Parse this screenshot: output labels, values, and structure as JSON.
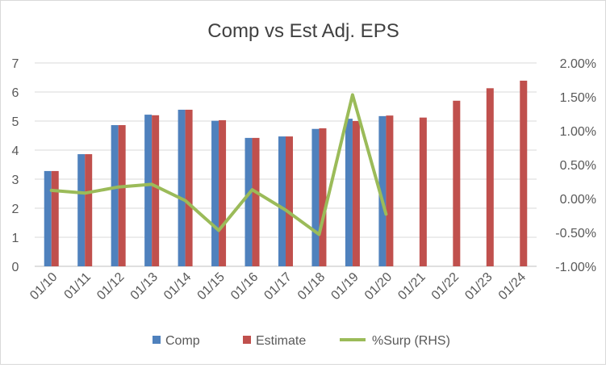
{
  "chart_data": {
    "type": "bar",
    "title": "Comp vs Est Adj. EPS",
    "categories": [
      "01/10",
      "01/11",
      "01/12",
      "01/13",
      "01/14",
      "01/15",
      "01/16",
      "01/17",
      "01/18",
      "01/19",
      "01/20",
      "01/21",
      "01/22",
      "01/23",
      "01/24"
    ],
    "series": [
      {
        "name": "Comp",
        "type": "bar",
        "axis": "left",
        "color": "#4f81bd",
        "values": [
          3.28,
          3.86,
          4.86,
          5.22,
          5.39,
          5.01,
          4.42,
          4.47,
          4.73,
          5.08,
          5.17,
          null,
          null,
          null,
          null
        ]
      },
      {
        "name": "Estimate",
        "type": "bar",
        "axis": "left",
        "color": "#c0504d",
        "values": [
          3.28,
          3.86,
          4.86,
          5.2,
          5.39,
          5.03,
          4.42,
          4.47,
          4.75,
          5.0,
          5.19,
          5.12,
          5.7,
          6.13,
          6.39
        ]
      },
      {
        "name": "%Surp (RHS)",
        "type": "line",
        "axis": "right",
        "color": "#9bbb59",
        "values": [
          0.0012,
          0.0008,
          0.0017,
          0.0021,
          -0.0003,
          -0.0047,
          0.0013,
          -0.0017,
          -0.0053,
          0.0153,
          -0.0023,
          null,
          null,
          null,
          null
        ]
      }
    ],
    "y_left": {
      "lim": [
        0,
        7
      ],
      "ticks": [
        0,
        1,
        2,
        3,
        4,
        5,
        6,
        7
      ],
      "tick_labels": [
        "0",
        "1",
        "2",
        "3",
        "4",
        "5",
        "6",
        "7"
      ]
    },
    "y_right": {
      "lim": [
        -0.01,
        0.02
      ],
      "ticks": [
        -0.01,
        -0.005,
        0.0,
        0.005,
        0.01,
        0.015,
        0.02
      ],
      "tick_labels": [
        "-1.00%",
        "-0.50%",
        "0.00%",
        "0.50%",
        "1.00%",
        "1.50%",
        "2.00%"
      ]
    },
    "grid": true,
    "legend": "bottom"
  }
}
